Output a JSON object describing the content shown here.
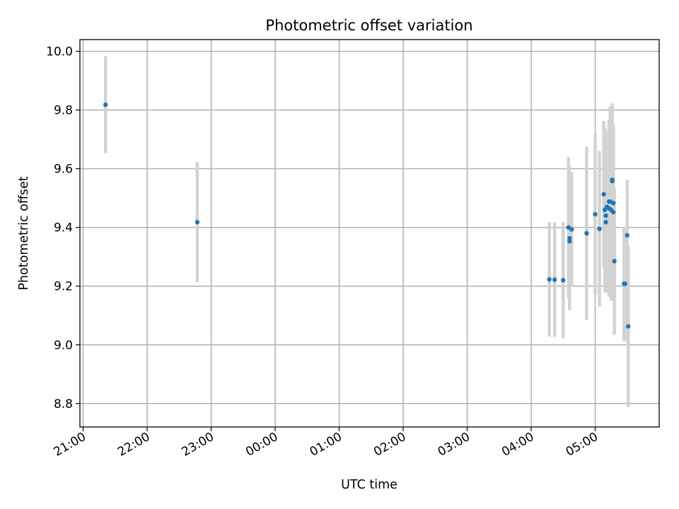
{
  "chart_data": {
    "type": "scatter",
    "title": "Photometric offset variation",
    "xlabel": "UTC time",
    "ylabel": "Photometric offset",
    "grid": true,
    "x_axis_type": "time",
    "x_tick_labels": [
      "21:00",
      "22:00",
      "23:00",
      "00:00",
      "01:00",
      "02:00",
      "03:00",
      "04:00",
      "05:00"
    ],
    "x_tick_times": [
      "21:00",
      "22:00",
      "23:00",
      "00:00",
      "01:00",
      "02:00",
      "03:00",
      "04:00",
      "05:00"
    ],
    "xlim": [
      "20:57",
      "06:00"
    ],
    "y_ticks": [
      8.8,
      9.0,
      9.2,
      9.4,
      9.6,
      9.8,
      10.0
    ],
    "ylim": [
      8.72,
      10.04
    ],
    "colors": {
      "marker": "#1f77b4",
      "errorbar": "#d3d3d3"
    },
    "series": [
      {
        "points": [
          {
            "x": "21:21",
            "y": 9.818,
            "err": 0.165
          },
          {
            "x": "22:47",
            "y": 9.418,
            "err": 0.205
          },
          {
            "x": "04:17",
            "y": 9.223,
            "err": 0.195
          },
          {
            "x": "04:22",
            "y": 9.222,
            "err": 0.195
          },
          {
            "x": "04:30",
            "y": 9.22,
            "err": 0.198
          },
          {
            "x": "04:35",
            "y": 9.4,
            "err": 0.24
          },
          {
            "x": "04:36",
            "y": 9.353,
            "err": 0.195
          },
          {
            "x": "04:36",
            "y": 9.363,
            "err": 0.245
          },
          {
            "x": "04:38",
            "y": 9.393,
            "err": 0.195
          },
          {
            "x": "04:52",
            "y": 9.38,
            "err": 0.295
          },
          {
            "x": "05:00",
            "y": 9.445,
            "err": 0.275
          },
          {
            "x": "05:04",
            "y": 9.395,
            "err": 0.265
          },
          {
            "x": "05:08",
            "y": 9.513,
            "err": 0.25
          },
          {
            "x": "05:09",
            "y": 9.46,
            "err": 0.28
          },
          {
            "x": "05:10",
            "y": 9.44,
            "err": 0.26
          },
          {
            "x": "05:10",
            "y": 9.418,
            "err": 0.24
          },
          {
            "x": "05:11",
            "y": 9.47,
            "err": 0.26
          },
          {
            "x": "05:13",
            "y": 9.488,
            "err": 0.28
          },
          {
            "x": "05:13",
            "y": 9.465,
            "err": 0.3
          },
          {
            "x": "05:14",
            "y": 9.488,
            "err": 0.325
          },
          {
            "x": "05:15",
            "y": 9.46,
            "err": 0.31
          },
          {
            "x": "05:16",
            "y": 9.562,
            "err": 0.26
          },
          {
            "x": "05:16",
            "y": 9.558,
            "err": 0.26
          },
          {
            "x": "05:17",
            "y": 9.452,
            "err": 0.3
          },
          {
            "x": "05:17",
            "y": 9.483,
            "err": 0.26
          },
          {
            "x": "05:18",
            "y": 9.285,
            "err": 0.25
          },
          {
            "x": "05:27",
            "y": 9.208,
            "err": 0.195
          },
          {
            "x": "05:28",
            "y": 9.208,
            "err": 0.195
          },
          {
            "x": "05:30",
            "y": 9.373,
            "err": 0.19
          },
          {
            "x": "05:31",
            "y": 9.063,
            "err": 0.275
          }
        ]
      }
    ]
  }
}
